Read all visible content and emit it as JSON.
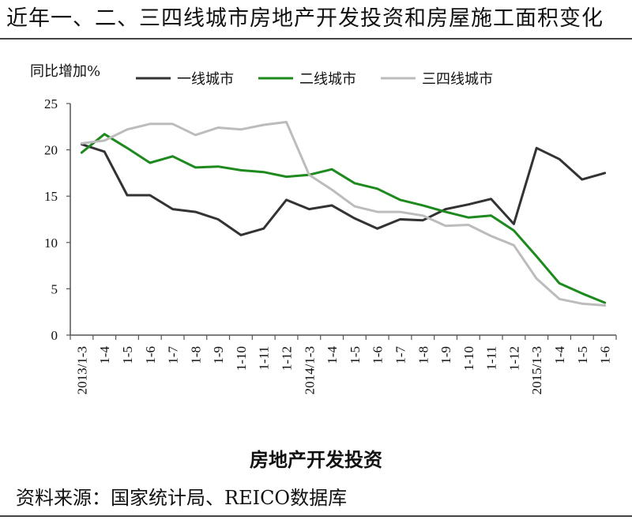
{
  "header": {
    "title": "近年一、二、三四线城市房地产开发投资和房屋施工面积变化"
  },
  "footer": {
    "caption": "房地产开发投资",
    "source": "资料来源：国家统计局、REICO数据库"
  },
  "chart_data": {
    "type": "line",
    "title": "",
    "ylabel": "同比增加%",
    "xlabel": "",
    "ylim": [
      0,
      25
    ],
    "yticks": [
      0,
      5,
      10,
      15,
      20,
      25
    ],
    "legend_position": "top",
    "grid": false,
    "categories": [
      "2013/1-3",
      "1-4",
      "1-5",
      "1-6",
      "1-7",
      "1-8",
      "1-9",
      "1-10",
      "1-11",
      "1-12",
      "2014/1-3",
      "1-4",
      "1-5",
      "1-6",
      "1-7",
      "1-8",
      "1-9",
      "1-10",
      "1-11",
      "1-12",
      "2015/1-3",
      "1-4",
      "1-5",
      "1-6"
    ],
    "series": [
      {
        "name": "一线城市",
        "color": "#333333",
        "values": [
          20.6,
          19.8,
          15.1,
          15.1,
          13.6,
          13.3,
          12.5,
          10.8,
          11.5,
          14.6,
          13.6,
          14.0,
          12.6,
          11.5,
          12.5,
          12.4,
          13.6,
          14.1,
          14.7,
          12.0,
          20.2,
          19.0,
          16.8,
          17.5
        ]
      },
      {
        "name": "二线城市",
        "color": "#1e8a1e",
        "values": [
          19.7,
          21.7,
          20.2,
          18.6,
          19.3,
          18.1,
          18.2,
          17.8,
          17.6,
          17.1,
          17.3,
          17.9,
          16.4,
          15.8,
          14.6,
          14.0,
          13.3,
          12.7,
          12.9,
          11.3,
          8.5,
          5.6,
          4.5,
          3.5
        ]
      },
      {
        "name": "三四线城市",
        "color": "#bcbcbc",
        "values": [
          20.7,
          21.0,
          22.2,
          22.8,
          22.8,
          21.6,
          22.4,
          22.2,
          22.7,
          23.0,
          17.3,
          15.7,
          13.9,
          13.3,
          13.3,
          12.9,
          11.8,
          11.9,
          10.7,
          9.7,
          6.1,
          3.9,
          3.4,
          3.2
        ]
      }
    ]
  }
}
